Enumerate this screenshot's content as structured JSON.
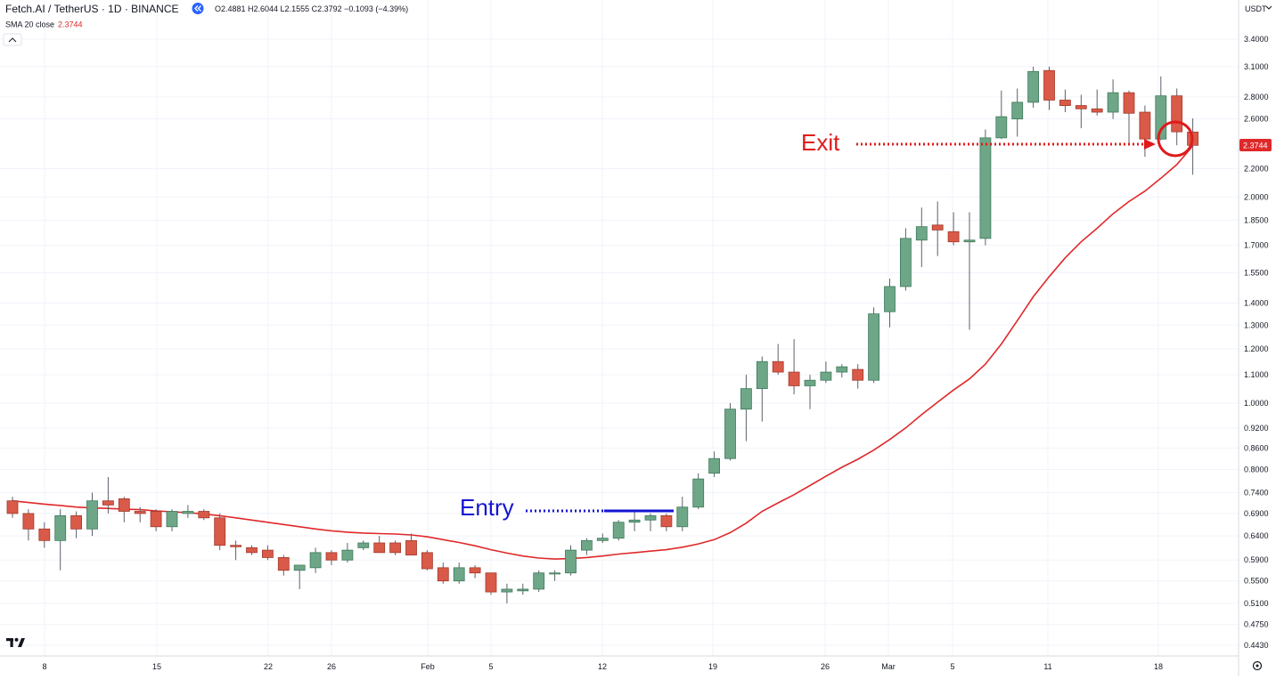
{
  "header": {
    "symbol": "Fetch.AI / TetherUS · 1D · BINANCE",
    "ohlc": "O2.4881 H2.6044 L2.1555 C2.3792 −0.1093 (−4.39%)",
    "sma_label": "SMA 20 close",
    "sma_value": "2.3744"
  },
  "price_axis": {
    "currency": "USDT",
    "current_price_label": "2.3744"
  },
  "annotations": {
    "entry": "Entry",
    "exit": "Exit"
  },
  "colors": {
    "up": "#6ea688",
    "down": "#d95a48",
    "sma": "#e0282a",
    "entry": "#1414d2",
    "exit": "#e01a1a"
  },
  "chart_data": {
    "type": "candlestick",
    "x_ticks": [
      "8",
      "15",
      "22",
      "26",
      "Feb",
      "5",
      "12",
      "19",
      "26",
      "Mar",
      "5",
      "11",
      "18"
    ],
    "y_ticks": [
      0.443,
      0.475,
      0.51,
      0.55,
      0.59,
      0.64,
      0.69,
      0.74,
      0.8,
      0.86,
      0.92,
      1.0,
      1.1,
      1.2,
      1.3,
      1.4,
      1.55,
      1.7,
      1.85,
      2.0,
      2.2,
      2.6,
      2.8,
      3.1,
      3.4
    ],
    "y_scale": "log",
    "ylim": [
      0.418,
      3.72
    ],
    "grid": true,
    "candles": [
      {
        "o": 0.72,
        "h": 0.73,
        "l": 0.68,
        "c": 0.69
      },
      {
        "o": 0.69,
        "h": 0.7,
        "l": 0.63,
        "c": 0.655
      },
      {
        "o": 0.655,
        "h": 0.67,
        "l": 0.615,
        "c": 0.63
      },
      {
        "o": 0.63,
        "h": 0.7,
        "l": 0.57,
        "c": 0.685
      },
      {
        "o": 0.685,
        "h": 0.695,
        "l": 0.635,
        "c": 0.655
      },
      {
        "o": 0.655,
        "h": 0.74,
        "l": 0.64,
        "c": 0.72
      },
      {
        "o": 0.72,
        "h": 0.78,
        "l": 0.69,
        "c": 0.71
      },
      {
        "o": 0.725,
        "h": 0.73,
        "l": 0.67,
        "c": 0.695
      },
      {
        "o": 0.695,
        "h": 0.705,
        "l": 0.67,
        "c": 0.69
      },
      {
        "o": 0.695,
        "h": 0.7,
        "l": 0.65,
        "c": 0.66
      },
      {
        "o": 0.66,
        "h": 0.7,
        "l": 0.65,
        "c": 0.695
      },
      {
        "o": 0.69,
        "h": 0.71,
        "l": 0.68,
        "c": 0.695
      },
      {
        "o": 0.695,
        "h": 0.7,
        "l": 0.675,
        "c": 0.68
      },
      {
        "o": 0.68,
        "h": 0.69,
        "l": 0.61,
        "c": 0.62
      },
      {
        "o": 0.62,
        "h": 0.63,
        "l": 0.59,
        "c": 0.617
      },
      {
        "o": 0.615,
        "h": 0.62,
        "l": 0.6,
        "c": 0.605
      },
      {
        "o": 0.61,
        "h": 0.62,
        "l": 0.59,
        "c": 0.595
      },
      {
        "o": 0.595,
        "h": 0.6,
        "l": 0.56,
        "c": 0.57
      },
      {
        "o": 0.57,
        "h": 0.58,
        "l": 0.535,
        "c": 0.58
      },
      {
        "o": 0.575,
        "h": 0.615,
        "l": 0.565,
        "c": 0.605
      },
      {
        "o": 0.605,
        "h": 0.61,
        "l": 0.58,
        "c": 0.59
      },
      {
        "o": 0.59,
        "h": 0.625,
        "l": 0.585,
        "c": 0.61
      },
      {
        "o": 0.615,
        "h": 0.63,
        "l": 0.61,
        "c": 0.625
      },
      {
        "o": 0.625,
        "h": 0.64,
        "l": 0.605,
        "c": 0.605
      },
      {
        "o": 0.625,
        "h": 0.63,
        "l": 0.6,
        "c": 0.605
      },
      {
        "o": 0.63,
        "h": 0.645,
        "l": 0.6,
        "c": 0.6
      },
      {
        "o": 0.605,
        "h": 0.61,
        "l": 0.57,
        "c": 0.573
      },
      {
        "o": 0.575,
        "h": 0.585,
        "l": 0.545,
        "c": 0.55
      },
      {
        "o": 0.55,
        "h": 0.585,
        "l": 0.545,
        "c": 0.575
      },
      {
        "o": 0.575,
        "h": 0.58,
        "l": 0.555,
        "c": 0.565
      },
      {
        "o": 0.565,
        "h": 0.565,
        "l": 0.525,
        "c": 0.53
      },
      {
        "o": 0.53,
        "h": 0.545,
        "l": 0.51,
        "c": 0.535
      },
      {
        "o": 0.532,
        "h": 0.545,
        "l": 0.525,
        "c": 0.535
      },
      {
        "o": 0.535,
        "h": 0.57,
        "l": 0.53,
        "c": 0.565
      },
      {
        "o": 0.565,
        "h": 0.57,
        "l": 0.55,
        "c": 0.565
      },
      {
        "o": 0.565,
        "h": 0.62,
        "l": 0.56,
        "c": 0.61
      },
      {
        "o": 0.61,
        "h": 0.635,
        "l": 0.6,
        "c": 0.63
      },
      {
        "o": 0.63,
        "h": 0.645,
        "l": 0.625,
        "c": 0.635
      },
      {
        "o": 0.635,
        "h": 0.675,
        "l": 0.63,
        "c": 0.67
      },
      {
        "o": 0.67,
        "h": 0.695,
        "l": 0.65,
        "c": 0.675
      },
      {
        "o": 0.675,
        "h": 0.69,
        "l": 0.65,
        "c": 0.685
      },
      {
        "o": 0.685,
        "h": 0.69,
        "l": 0.65,
        "c": 0.66
      },
      {
        "o": 0.66,
        "h": 0.73,
        "l": 0.65,
        "c": 0.705
      },
      {
        "o": 0.705,
        "h": 0.79,
        "l": 0.7,
        "c": 0.775
      },
      {
        "o": 0.79,
        "h": 0.85,
        "l": 0.78,
        "c": 0.83
      },
      {
        "o": 0.83,
        "h": 1.0,
        "l": 0.825,
        "c": 0.98
      },
      {
        "o": 0.98,
        "h": 1.1,
        "l": 0.88,
        "c": 1.05
      },
      {
        "o": 1.05,
        "h": 1.17,
        "l": 0.94,
        "c": 1.15
      },
      {
        "o": 1.15,
        "h": 1.22,
        "l": 1.1,
        "c": 1.11
      },
      {
        "o": 1.11,
        "h": 1.24,
        "l": 1.03,
        "c": 1.06
      },
      {
        "o": 1.06,
        "h": 1.1,
        "l": 0.98,
        "c": 1.08
      },
      {
        "o": 1.08,
        "h": 1.15,
        "l": 1.07,
        "c": 1.11
      },
      {
        "o": 1.11,
        "h": 1.14,
        "l": 1.09,
        "c": 1.13
      },
      {
        "o": 1.12,
        "h": 1.14,
        "l": 1.05,
        "c": 1.08
      },
      {
        "o": 1.08,
        "h": 1.38,
        "l": 1.07,
        "c": 1.35
      },
      {
        "o": 1.36,
        "h": 1.52,
        "l": 1.29,
        "c": 1.48
      },
      {
        "o": 1.48,
        "h": 1.8,
        "l": 1.46,
        "c": 1.74
      },
      {
        "o": 1.73,
        "h": 1.93,
        "l": 1.58,
        "c": 1.81
      },
      {
        "o": 1.82,
        "h": 1.97,
        "l": 1.64,
        "c": 1.79
      },
      {
        "o": 1.78,
        "h": 1.9,
        "l": 1.7,
        "c": 1.72
      },
      {
        "o": 1.72,
        "h": 1.9,
        "l": 1.28,
        "c": 1.73
      },
      {
        "o": 1.74,
        "h": 2.51,
        "l": 1.7,
        "c": 2.44
      },
      {
        "o": 2.44,
        "h": 2.86,
        "l": 2.43,
        "c": 2.62
      },
      {
        "o": 2.6,
        "h": 2.88,
        "l": 2.45,
        "c": 2.75
      },
      {
        "o": 2.75,
        "h": 3.1,
        "l": 2.7,
        "c": 3.05
      },
      {
        "o": 3.06,
        "h": 3.1,
        "l": 2.68,
        "c": 2.77
      },
      {
        "o": 2.77,
        "h": 2.87,
        "l": 2.66,
        "c": 2.72
      },
      {
        "o": 2.72,
        "h": 2.82,
        "l": 2.52,
        "c": 2.69
      },
      {
        "o": 2.69,
        "h": 2.87,
        "l": 2.63,
        "c": 2.66
      },
      {
        "o": 2.66,
        "h": 2.97,
        "l": 2.6,
        "c": 2.84
      },
      {
        "o": 2.84,
        "h": 2.86,
        "l": 2.4,
        "c": 2.65
      },
      {
        "o": 2.66,
        "h": 2.72,
        "l": 2.29,
        "c": 2.43
      },
      {
        "o": 2.43,
        "h": 3.0,
        "l": 2.42,
        "c": 2.81
      },
      {
        "o": 2.81,
        "h": 2.88,
        "l": 2.38,
        "c": 2.49
      },
      {
        "o": 2.4881,
        "h": 2.6044,
        "l": 2.1555,
        "c": 2.3792
      }
    ],
    "sma": {
      "name": "SMA 20 close",
      "values": [
        0.72,
        0.716,
        0.712,
        0.709,
        0.705,
        0.703,
        0.702,
        0.7,
        0.699,
        0.696,
        0.694,
        0.692,
        0.689,
        0.685,
        0.68,
        0.675,
        0.67,
        0.665,
        0.66,
        0.655,
        0.651,
        0.648,
        0.646,
        0.645,
        0.644,
        0.642,
        0.638,
        0.632,
        0.626,
        0.619,
        0.611,
        0.604,
        0.598,
        0.594,
        0.592,
        0.593,
        0.595,
        0.598,
        0.602,
        0.605,
        0.608,
        0.611,
        0.616,
        0.623,
        0.632,
        0.647,
        0.668,
        0.695,
        0.715,
        0.735,
        0.758,
        0.782,
        0.806,
        0.828,
        0.854,
        0.885,
        0.92,
        0.962,
        1.003,
        1.045,
        1.085,
        1.14,
        1.22,
        1.32,
        1.43,
        1.53,
        1.63,
        1.72,
        1.8,
        1.89,
        1.97,
        2.04,
        2.13,
        2.23,
        2.3744
      ]
    }
  }
}
